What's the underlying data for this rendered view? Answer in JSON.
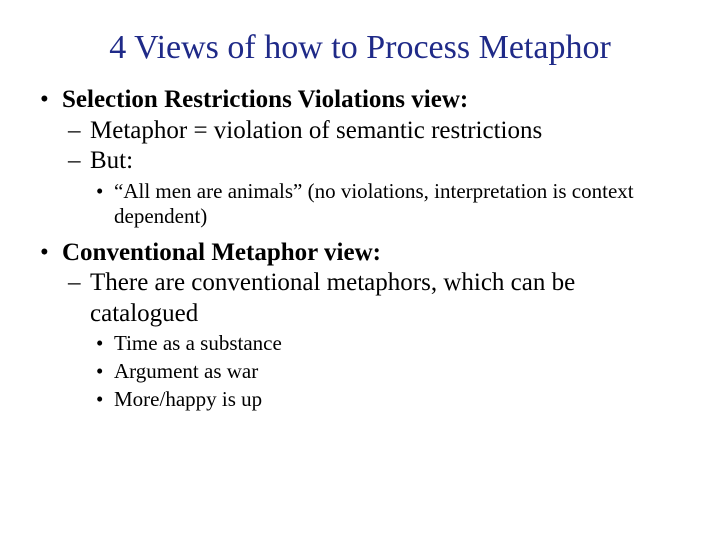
{
  "title": "4 Views of how to Process Metaphor",
  "items": [
    {
      "label": "Selection Restrictions Violations view:",
      "sub": [
        {
          "label": "Metaphor = violation of semantic restrictions"
        },
        {
          "label": "But:",
          "sub": [
            {
              "label": "“All men are animals” (no violations, interpretation is context dependent)"
            }
          ]
        }
      ]
    },
    {
      "label": "Conventional Metaphor view:",
      "sub": [
        {
          "label": "There are conventional metaphors, which can be catalogued",
          "sub": [
            {
              "label": "Time as a substance"
            },
            {
              "label": "Argument as war"
            },
            {
              "label": "More/happy is up"
            }
          ]
        }
      ]
    }
  ],
  "colors": {
    "title": "#1f2a88",
    "body": "#000000",
    "background": "#ffffff"
  },
  "typography": {
    "family": "Times New Roman",
    "title_fontsize": 34,
    "level1_fontsize": 25,
    "level2_fontsize": 25,
    "level3_fontsize": 21
  }
}
